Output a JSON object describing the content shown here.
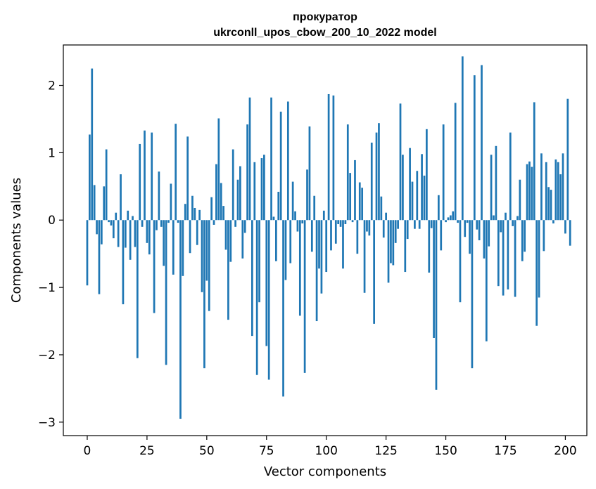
{
  "chart_data": {
    "type": "bar",
    "title": "прокуратор",
    "subtitle": "ukrconll_upos_cbow_200_10_2022 model",
    "xlabel": "Vector components",
    "ylabel": "Components values",
    "xlim": [
      -10,
      209
    ],
    "ylim": [
      -3.2,
      2.6
    ],
    "xticks": [
      0,
      25,
      50,
      75,
      100,
      125,
      150,
      175,
      200
    ],
    "xtick_labels": [
      "0",
      "25",
      "50",
      "75",
      "100",
      "125",
      "150",
      "175",
      "200"
    ],
    "yticks": [
      -3,
      -2,
      -1,
      0,
      1,
      2
    ],
    "ytick_labels": [
      "−3",
      "−2",
      "−1",
      "0",
      "1",
      "2"
    ],
    "bar_color": "#1f77b4",
    "grid": false,
    "legend": "none",
    "values": [
      -0.97,
      1.27,
      2.25,
      0.52,
      -0.21,
      -1.1,
      -0.36,
      0.5,
      1.05,
      -0.03,
      -0.08,
      -0.27,
      0.11,
      -0.4,
      0.68,
      -1.25,
      -0.41,
      0.14,
      -0.59,
      0.06,
      -0.4,
      -2.05,
      1.13,
      -0.1,
      1.33,
      -0.34,
      -0.51,
      1.3,
      -1.38,
      -0.15,
      0.72,
      -0.1,
      -0.68,
      -2.15,
      -0.04,
      0.54,
      -0.81,
      1.43,
      -0.04,
      -2.95,
      -0.83,
      0.24,
      1.24,
      -0.49,
      0.36,
      0.18,
      -0.37,
      0.15,
      -1.07,
      -2.2,
      -0.9,
      -1.35,
      0.34,
      -0.07,
      0.83,
      1.51,
      0.55,
      0.21,
      -0.44,
      -1.48,
      -0.62,
      1.05,
      -0.1,
      0.6,
      0.8,
      -0.57,
      -0.19,
      1.42,
      1.82,
      -1.72,
      0.86,
      -2.3,
      -1.22,
      0.92,
      0.97,
      -1.87,
      -2.37,
      1.82,
      0.05,
      -0.61,
      0.42,
      1.61,
      -2.62,
      -0.89,
      1.76,
      -0.64,
      0.57,
      0.13,
      -0.17,
      -1.42,
      -0.05,
      -2.27,
      0.75,
      1.39,
      -0.47,
      0.36,
      -1.5,
      -0.72,
      -1.09,
      0.14,
      -0.77,
      1.87,
      -0.45,
      1.85,
      -0.35,
      -0.06,
      -0.1,
      -0.72,
      -0.06,
      1.42,
      0.7,
      -0.03,
      0.89,
      -0.5,
      0.56,
      0.48,
      -1.08,
      -0.17,
      -0.23,
      1.15,
      -1.54,
      1.3,
      1.44,
      0.35,
      -0.26,
      0.11,
      -0.93,
      -0.64,
      -0.67,
      -0.34,
      -0.13,
      1.73,
      0.97,
      -0.77,
      -0.28,
      1.07,
      0.57,
      -0.13,
      0.73,
      -0.13,
      0.98,
      0.66,
      1.35,
      -0.78,
      -0.12,
      -1.75,
      -2.52,
      0.37,
      -0.45,
      1.42,
      -0.03,
      0.04,
      0.07,
      0.13,
      1.74,
      -0.04,
      -1.22,
      2.43,
      -0.25,
      -0.04,
      -0.5,
      -2.2,
      2.15,
      -0.14,
      -0.3,
      2.3,
      -0.57,
      -1.8,
      -0.39,
      0.97,
      0.07,
      1.1,
      -0.98,
      -0.18,
      -1.12,
      0.11,
      -1.03,
      1.3,
      -0.09,
      -1.14,
      0.06,
      0.6,
      -0.61,
      -0.47,
      0.83,
      0.87,
      0.79,
      1.75,
      -1.57,
      -1.15,
      0.99,
      -0.46,
      0.86,
      0.49,
      0.45,
      -0.05,
      0.9,
      0.86,
      0.68,
      0.99,
      -0.2,
      1.8,
      -0.38
    ]
  }
}
